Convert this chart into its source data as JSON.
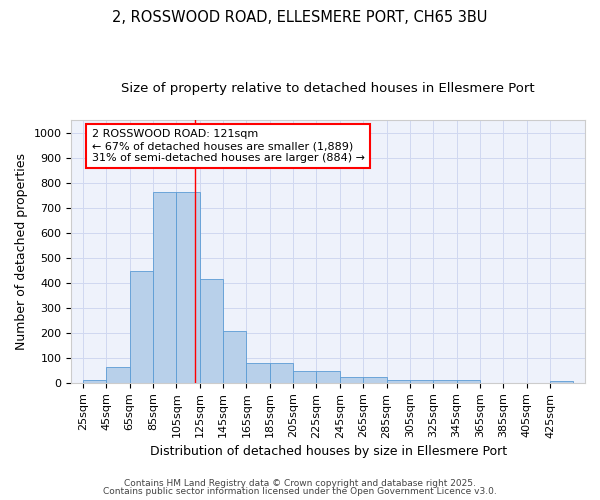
{
  "title_line1": "2, ROSSWOOD ROAD, ELLESMERE PORT, CH65 3BU",
  "title_line2": "Size of property relative to detached houses in Ellesmere Port",
  "xlabel": "Distribution of detached houses by size in Ellesmere Port",
  "ylabel": "Number of detached properties",
  "bin_starts": [
    25,
    45,
    65,
    85,
    105,
    125,
    145,
    165,
    185,
    205,
    225,
    245,
    265,
    285,
    305,
    325,
    345,
    365,
    385,
    405,
    425
  ],
  "bin_labels": [
    "25sqm",
    "45sqm",
    "65sqm",
    "85sqm",
    "105sqm",
    "125sqm",
    "145sqm",
    "165sqm",
    "185sqm",
    "205sqm",
    "225sqm",
    "245sqm",
    "265sqm",
    "285sqm",
    "305sqm",
    "325sqm",
    "345sqm",
    "365sqm",
    "385sqm",
    "405sqm",
    "425sqm"
  ],
  "bar_heights": [
    10,
    62,
    447,
    762,
    762,
    415,
    207,
    78,
    78,
    47,
    47,
    25,
    25,
    10,
    10,
    10,
    10,
    0,
    0,
    0,
    7
  ],
  "bar_color": "#b8d0ea",
  "bar_edge_color": "#5b9bd5",
  "grid_color": "#d0d8f0",
  "background_color": "#eef2fb",
  "red_line_x": 121,
  "ylim": [
    0,
    1050
  ],
  "yticks": [
    0,
    100,
    200,
    300,
    400,
    500,
    600,
    700,
    800,
    900,
    1000
  ],
  "annotation_line1": "2 ROSSWOOD ROAD: 121sqm",
  "annotation_line2": "← 67% of detached houses are smaller (1,889)",
  "annotation_line3": "31% of semi-detached houses are larger (884) →",
  "footer_line1": "Contains HM Land Registry data © Crown copyright and database right 2025.",
  "footer_line2": "Contains public sector information licensed under the Open Government Licence v3.0.",
  "title_fontsize": 10.5,
  "subtitle_fontsize": 9.5,
  "axis_label_fontsize": 9,
  "tick_fontsize": 8,
  "annotation_fontsize": 8,
  "footer_fontsize": 6.5
}
